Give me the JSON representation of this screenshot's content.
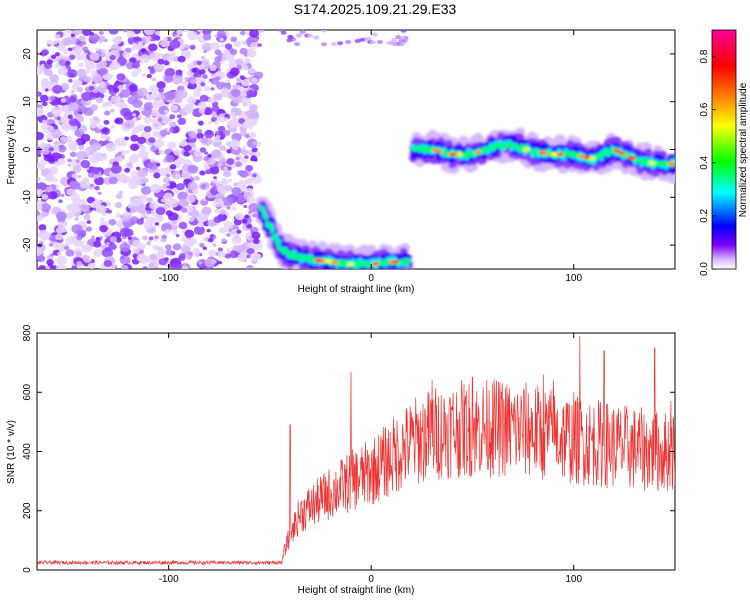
{
  "title": "S174.2025.109.21.29.E33",
  "chart_data": [
    {
      "type": "heatmap",
      "title": "S174.2025.109.21.29.E33",
      "xlabel": "Height of straight line (km)",
      "ylabel": "Frequency (Hz)",
      "xlim": [
        -165,
        150
      ],
      "ylim": [
        -25,
        25
      ],
      "xticks": [
        "-100",
        "0",
        "100"
      ],
      "yticks": [
        "20",
        "10",
        "0",
        "-10",
        "-20"
      ],
      "grid": false,
      "colorbar": {
        "label": "Normalized spectral amplitude",
        "range": [
          0.0,
          0.9
        ],
        "ticks": [
          "0.0",
          "0.2",
          "0.4",
          "0.6",
          "0.8"
        ],
        "colors": [
          "#ffffff",
          "#c8a0ff",
          "#7b00ff",
          "#0000ff",
          "#00ffff",
          "#00ff00",
          "#ffff00",
          "#ff8000",
          "#ff0000",
          "#ff0099"
        ]
      },
      "ridge": [
        {
          "x": -55,
          "y": -12
        },
        {
          "x": -50,
          "y": -16
        },
        {
          "x": -47,
          "y": -19
        },
        {
          "x": -44,
          "y": -21
        },
        {
          "x": -40,
          "y": -22
        },
        {
          "x": -35,
          "y": -22.5
        },
        {
          "x": -30,
          "y": -23
        },
        {
          "x": -20,
          "y": -23.5
        },
        {
          "x": -10,
          "y": -24
        },
        {
          "x": 0,
          "y": -24
        },
        {
          "x": 10,
          "y": -23.5
        },
        {
          "x": 20,
          "y": -23.5
        },
        {
          "x": 20,
          "y": 0
        },
        {
          "x": 30,
          "y": 0
        },
        {
          "x": 40,
          "y": -1
        },
        {
          "x": 50,
          "y": -1
        },
        {
          "x": 60,
          "y": 0.5
        },
        {
          "x": 70,
          "y": 1
        },
        {
          "x": 80,
          "y": -0.5
        },
        {
          "x": 90,
          "y": -1
        },
        {
          "x": 100,
          "y": -1
        },
        {
          "x": 110,
          "y": -2
        },
        {
          "x": 120,
          "y": 0
        },
        {
          "x": 130,
          "y": -2
        },
        {
          "x": 140,
          "y": -3
        },
        {
          "x": 150,
          "y": -3
        }
      ]
    },
    {
      "type": "line",
      "xlabel": "Height of straight line (km)",
      "ylabel": "SNR (10 * v/v)",
      "xlim": [
        -165,
        150
      ],
      "ylim": [
        0,
        800
      ],
      "xticks": [
        "-100",
        "0",
        "100"
      ],
      "yticks": [
        "0",
        "200",
        "400",
        "600",
        "800"
      ],
      "grid": false,
      "color": "#ee3333",
      "envelope": {
        "x": [
          -165,
          -44,
          -43,
          -40,
          -35,
          -20,
          -10,
          0,
          10,
          20,
          30,
          40,
          60,
          80,
          100,
          120,
          140,
          150
        ],
        "y": [
          25,
          25,
          60,
          120,
          190,
          260,
          300,
          330,
          380,
          430,
          460,
          475,
          480,
          470,
          440,
          420,
          400,
          400
        ]
      },
      "spikes": [
        {
          "x": -40,
          "y": 490
        },
        {
          "x": -10,
          "y": 670
        },
        {
          "x": 30,
          "y": 640
        },
        {
          "x": 50,
          "y": 650
        },
        {
          "x": 60,
          "y": 630
        },
        {
          "x": 85,
          "y": 660
        },
        {
          "x": 90,
          "y": 640
        },
        {
          "x": 100,
          "y": 600
        },
        {
          "x": 103,
          "y": 790
        },
        {
          "x": 115,
          "y": 740
        },
        {
          "x": 140,
          "y": 750
        },
        {
          "x": 148,
          "y": 570
        }
      ]
    }
  ]
}
